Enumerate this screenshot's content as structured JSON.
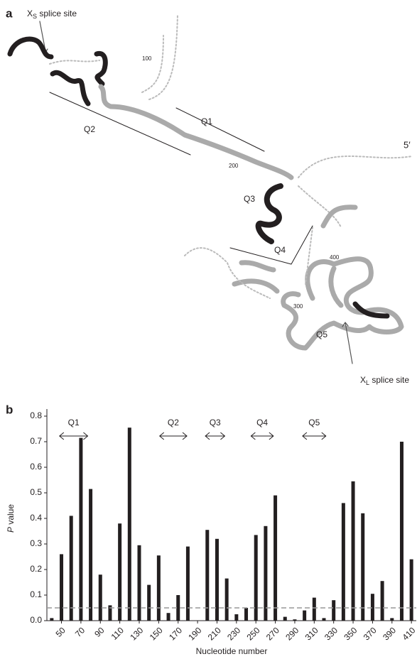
{
  "panel_a": {
    "label": "a",
    "xs_site": {
      "prefix": "X",
      "sub": "S",
      "suffix": " splice site"
    },
    "xl_site": {
      "prefix": "X",
      "sub": "L",
      "suffix": " splice site"
    },
    "regions": [
      "Q1",
      "Q2",
      "Q3",
      "Q4",
      "Q5"
    ],
    "five_prime": "5′",
    "positions": [
      "100",
      "200",
      "300",
      "400"
    ]
  },
  "chart_data": {
    "type": "bar",
    "panel_label": "b",
    "x_label": "Nucleotide number",
    "y_label": {
      "italic": "P",
      "rest": " value"
    },
    "x": [
      40,
      50,
      60,
      70,
      80,
      90,
      100,
      110,
      120,
      130,
      140,
      150,
      160,
      170,
      180,
      200,
      210,
      220,
      230,
      240,
      250,
      260,
      270,
      280,
      290,
      300,
      310,
      320,
      330,
      340,
      350,
      360,
      370,
      380,
      390,
      400,
      410
    ],
    "values": [
      0.01,
      0.26,
      0.41,
      0.715,
      0.515,
      0.18,
      0.06,
      0.38,
      0.755,
      0.295,
      0.14,
      0.255,
      0.03,
      0.1,
      0.29,
      0.355,
      0.32,
      0.165,
      0.025,
      0.05,
      0.335,
      0.37,
      0.49,
      0.015,
      0.005,
      0.04,
      0.09,
      0.01,
      0.08,
      0.46,
      0.545,
      0.42,
      0.105,
      0.155,
      0.01,
      0.7,
      0.24
    ],
    "color": "#231f20",
    "xlim": [
      35,
      415
    ],
    "xticks": [
      50,
      70,
      90,
      110,
      130,
      150,
      170,
      190,
      210,
      230,
      250,
      270,
      290,
      310,
      330,
      350,
      370,
      390,
      410
    ],
    "ylim": [
      0,
      0.8
    ],
    "yticks": [
      {
        "value": 0,
        "label": "0.0"
      },
      0.1,
      0.2,
      0.3,
      0.4,
      0.5,
      0.6,
      0.7,
      0.8
    ],
    "threshold": 0.05,
    "threshold_color": "#999999",
    "regions": [
      {
        "label": "Q1",
        "start": 48,
        "end": 77
      },
      {
        "label": "Q2",
        "start": 151,
        "end": 179
      },
      {
        "label": "Q3",
        "start": 198,
        "end": 218
      },
      {
        "label": "Q4",
        "start": 245,
        "end": 268
      },
      {
        "label": "Q5",
        "start": 298,
        "end": 322
      }
    ]
  }
}
